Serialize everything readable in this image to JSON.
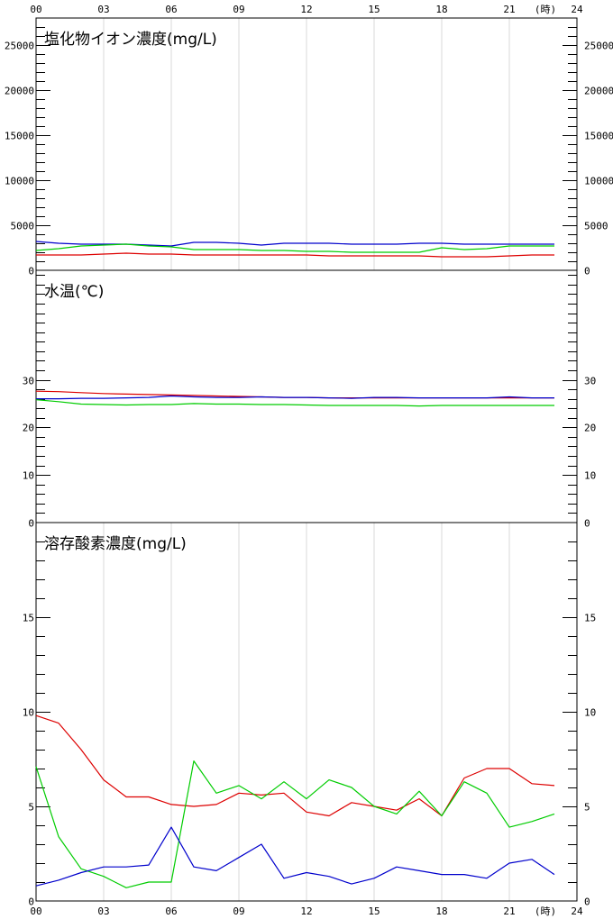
{
  "time_axis": {
    "ticks": [
      "00",
      "03",
      "06",
      "09",
      "12",
      "15",
      "18",
      "21",
      "24"
    ],
    "unit_label": "(時)",
    "range": [
      0,
      24
    ]
  },
  "chart_data": [
    {
      "type": "line",
      "title": "塩化物イオン濃度(mg/L)",
      "ylim": [
        0,
        28000
      ],
      "yticks": [
        0,
        5000,
        10000,
        15000,
        20000,
        25000
      ],
      "right_yticks": [
        0,
        5000,
        10000,
        15000,
        20000,
        25000
      ],
      "grid": "vertical",
      "x": [
        0,
        1,
        2,
        3,
        4,
        5,
        6,
        7,
        8,
        9,
        10,
        11,
        12,
        13,
        14,
        15,
        16,
        17,
        18,
        19,
        20,
        21,
        22,
        23
      ],
      "series": [
        {
          "color": "#0000cc",
          "values": [
            3200,
            3000,
            2900,
            2900,
            2900,
            2800,
            2700,
            3100,
            3100,
            3000,
            2800,
            3000,
            3000,
            3000,
            2900,
            2900,
            2900,
            3000,
            3000,
            2900,
            2900,
            2900,
            2900,
            2900
          ]
        },
        {
          "color": "#00cc00",
          "values": [
            2200,
            2400,
            2700,
            2800,
            2900,
            2700,
            2600,
            2300,
            2300,
            2300,
            2200,
            2200,
            2100,
            2100,
            2000,
            2000,
            2000,
            2000,
            2500,
            2300,
            2400,
            2700,
            2700,
            2700
          ]
        },
        {
          "color": "#dd0000",
          "values": [
            1700,
            1700,
            1700,
            1800,
            1900,
            1800,
            1800,
            1700,
            1700,
            1700,
            1700,
            1700,
            1700,
            1600,
            1600,
            1600,
            1600,
            1600,
            1500,
            1500,
            1500,
            1600,
            1700,
            1700
          ]
        }
      ]
    },
    {
      "type": "line",
      "title": "水温(℃)",
      "ylim": [
        0,
        53
      ],
      "yticks": [
        0,
        10,
        20,
        30
      ],
      "right_yticks": [
        0,
        10,
        20,
        30
      ],
      "grid": "none",
      "x": [
        0,
        1,
        2,
        3,
        4,
        5,
        6,
        7,
        8,
        9,
        10,
        11,
        12,
        13,
        14,
        15,
        16,
        17,
        18,
        19,
        20,
        21,
        22,
        23
      ],
      "series": [
        {
          "color": "#dd0000",
          "values": [
            27.6,
            27.5,
            27.3,
            27.1,
            27.0,
            26.9,
            26.8,
            26.7,
            26.6,
            26.5,
            26.4,
            26.3,
            26.3,
            26.2,
            26.2,
            26.2,
            26.2,
            26.2,
            26.2,
            26.2,
            26.2,
            26.2,
            26.2,
            26.2
          ]
        },
        {
          "color": "#0000cc",
          "values": [
            26.0,
            26.0,
            26.1,
            26.1,
            26.2,
            26.3,
            26.6,
            26.4,
            26.3,
            26.3,
            26.4,
            26.3,
            26.3,
            26.2,
            26.1,
            26.3,
            26.3,
            26.2,
            26.2,
            26.2,
            26.2,
            26.4,
            26.2,
            26.2
          ]
        },
        {
          "color": "#00cc00",
          "values": [
            25.8,
            25.4,
            24.9,
            24.8,
            24.7,
            24.8,
            24.8,
            25.0,
            24.9,
            24.9,
            24.8,
            24.8,
            24.7,
            24.6,
            24.6,
            24.6,
            24.6,
            24.5,
            24.6,
            24.6,
            24.6,
            24.6,
            24.6,
            24.6
          ]
        }
      ]
    },
    {
      "type": "line",
      "title": "溶存酸素濃度(mg/L)",
      "ylim": [
        0,
        20
      ],
      "yticks": [
        0,
        5,
        10,
        15
      ],
      "right_yticks": [
        0,
        5,
        10,
        15
      ],
      "grid": "vertical",
      "x": [
        0,
        1,
        2,
        3,
        4,
        5,
        6,
        7,
        8,
        9,
        10,
        11,
        12,
        13,
        14,
        15,
        16,
        17,
        18,
        19,
        20,
        21,
        22,
        23
      ],
      "series": [
        {
          "color": "#dd0000",
          "values": [
            9.8,
            9.4,
            8.0,
            6.4,
            5.5,
            5.5,
            5.1,
            5.0,
            5.1,
            5.7,
            5.6,
            5.7,
            4.7,
            4.5,
            5.2,
            5.0,
            4.8,
            5.4,
            4.5,
            6.5,
            7.0,
            7.0,
            6.2,
            6.1
          ]
        },
        {
          "color": "#00cc00",
          "values": [
            7.1,
            3.4,
            1.7,
            1.3,
            0.7,
            1.0,
            1.0,
            7.4,
            5.7,
            6.1,
            5.4,
            6.3,
            5.4,
            6.4,
            6.0,
            5.0,
            4.6,
            5.8,
            4.5,
            6.3,
            5.7,
            3.9,
            4.2,
            4.6
          ]
        },
        {
          "color": "#0000cc",
          "values": [
            0.8,
            1.1,
            1.5,
            1.8,
            1.8,
            1.9,
            3.9,
            1.8,
            1.6,
            2.3,
            3.0,
            1.2,
            1.5,
            1.3,
            0.9,
            1.2,
            1.8,
            1.6,
            1.4,
            1.4,
            1.2,
            2.0,
            2.2,
            1.4
          ]
        }
      ]
    }
  ]
}
